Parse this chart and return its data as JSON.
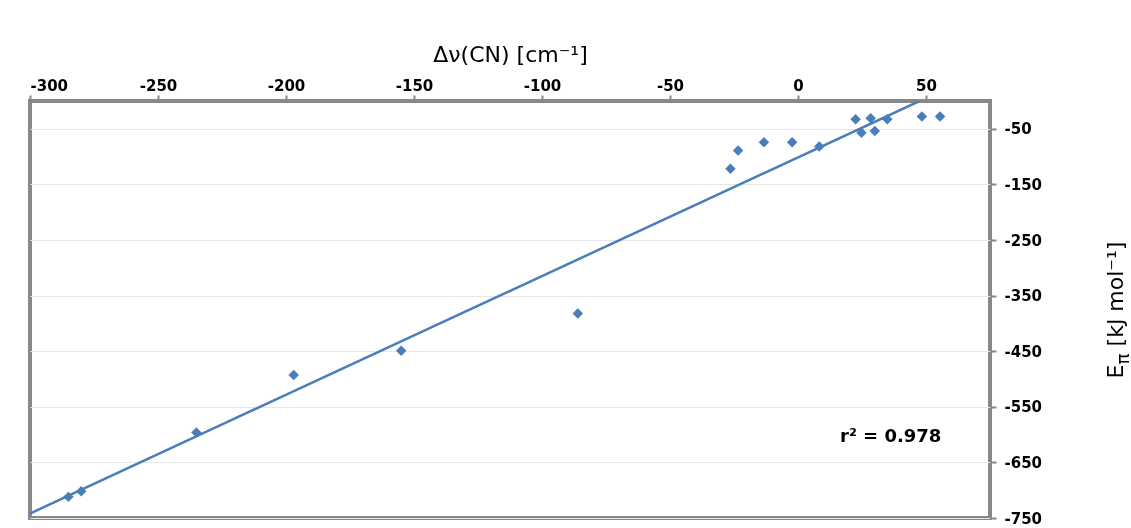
{
  "chart_data": {
    "type": "scatter",
    "xlabel": "Δν(CN) [cm⁻¹]",
    "ylabel": "E$_{π}$ [kJ mol⁻¹]",
    "xlim": [
      -300,
      75
    ],
    "xticks": [
      -300,
      -250,
      -200,
      -150,
      -100,
      -50,
      0,
      50
    ],
    "ylim": [
      -750,
      0
    ],
    "yticks": [
      -50,
      -150,
      -250,
      -350,
      -450,
      -550,
      -650,
      -750
    ],
    "grid": "y",
    "annotations": [
      "r² = 0.978"
    ],
    "series": [
      {
        "marker": "diamond",
        "color": "#4a7ebb",
        "x": [
          -285,
          -280,
          -235,
          -197,
          -155,
          -86,
          -26.4,
          -23.4,
          -13.3,
          -2.3,
          8.3,
          22.5,
          24.8,
          28.4,
          30,
          34.9,
          48.4,
          55.5
        ],
        "values": [
          -712,
          -702,
          -596,
          -493,
          -449,
          -382,
          -122,
          -89,
          -74,
          -74,
          -82,
          -33,
          -57,
          -31,
          -54,
          -33,
          -28,
          -28
        ]
      },
      {
        "type": "line",
        "marker": "none",
        "color": "#4a7ebb",
        "x": [
          -300,
          47.5
        ],
        "values": [
          -742,
          0
        ]
      }
    ]
  }
}
